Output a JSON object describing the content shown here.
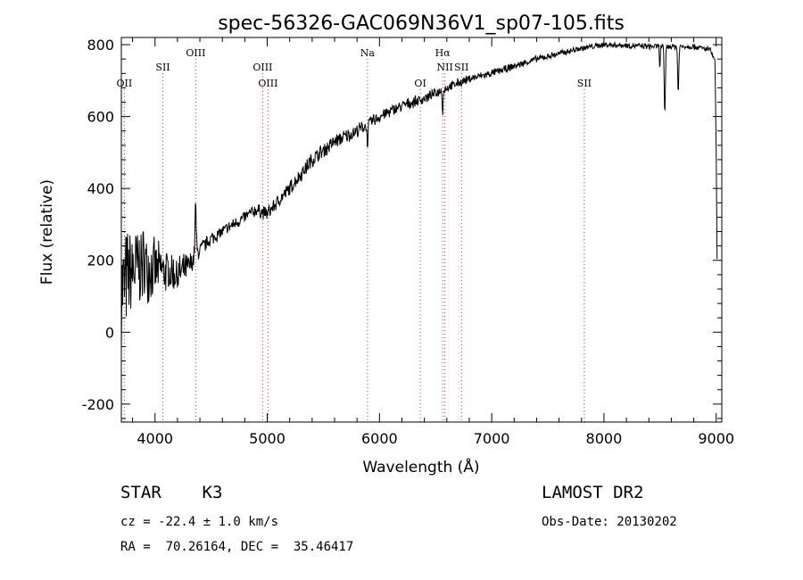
{
  "chart_data": {
    "type": "line",
    "title": "spec-56326-GAC069N36V1_sp07-105.fits",
    "xlabel": "Wavelength (Å)",
    "ylabel": "Flux (relative)",
    "xlim": [
      3700,
      9050
    ],
    "ylim": [
      -250,
      820
    ],
    "xticks": [
      4000,
      5000,
      6000,
      7000,
      8000,
      9000
    ],
    "yticks": [
      -200,
      0,
      200,
      400,
      600,
      800
    ],
    "grid": false,
    "legend": "none",
    "line_color": "#000000",
    "marker_line_color": "#cc3333",
    "spectral_lines": [
      {
        "label": "OII",
        "wavelength": 3727,
        "row": 3
      },
      {
        "label": "SII",
        "wavelength": 4070,
        "row": 2
      },
      {
        "label": "OIII",
        "wavelength": 4363,
        "row": 1
      },
      {
        "label": "OIII",
        "wavelength": 4959,
        "row": 2
      },
      {
        "label": "OIII",
        "wavelength": 5007,
        "row": 3
      },
      {
        "label": "Na",
        "wavelength": 5893,
        "row": 1
      },
      {
        "label": "OI",
        "wavelength": 6364,
        "row": 3
      },
      {
        "label": "Hα",
        "wavelength": 6563,
        "row": 1
      },
      {
        "label": "NII",
        "wavelength": 6583,
        "row": 2
      },
      {
        "label": "SII",
        "wavelength": 6731,
        "row": 2
      },
      {
        "label": "SII",
        "wavelength": 7825,
        "row": 3
      }
    ],
    "continuum": {
      "x": [
        3700,
        3800,
        3900,
        4000,
        4100,
        4200,
        4300,
        4400,
        4500,
        4700,
        4900,
        5000,
        5200,
        5400,
        5600,
        5800,
        6000,
        6200,
        6400,
        6600,
        6800,
        7000,
        7200,
        7400,
        7600,
        7800,
        8000,
        8200,
        8400,
        8600,
        8800,
        8950,
        8990,
        9000,
        9010
      ],
      "y": [
        120,
        170,
        190,
        175,
        170,
        160,
        180,
        230,
        260,
        300,
        340,
        330,
        400,
        480,
        530,
        560,
        600,
        630,
        650,
        680,
        705,
        720,
        740,
        760,
        775,
        790,
        800,
        798,
        795,
        795,
        795,
        785,
        750,
        500,
        120
      ]
    },
    "noise": {
      "x": [
        3700,
        3800,
        3900,
        4000,
        4100,
        4200,
        4300,
        4400,
        4600,
        5000,
        5400,
        5800,
        6200,
        6600,
        7000,
        7600,
        8200,
        8900,
        9010
      ],
      "amp": [
        170,
        150,
        120,
        90,
        70,
        60,
        45,
        25,
        20,
        22,
        25,
        22,
        18,
        15,
        12,
        10,
        9,
        9,
        9
      ]
    },
    "absorption_features": [
      {
        "x": 4362,
        "depth": -140,
        "width": 8
      },
      {
        "x": 5893,
        "depth": 50,
        "width": 8
      },
      {
        "x": 6563,
        "depth": 60,
        "width": 6
      },
      {
        "x": 8498,
        "depth": 60,
        "width": 5
      },
      {
        "x": 8542,
        "depth": 190,
        "width": 7
      },
      {
        "x": 8662,
        "depth": 130,
        "width": 7
      }
    ]
  },
  "info": {
    "class_line": "STAR    K3",
    "survey": "LAMOST DR2",
    "cz": "cz = -22.4 ± 1.0 km/s",
    "obs_date": "Obs-Date: 20130202",
    "radec": "RA =  70.26164, DEC =  35.46417"
  }
}
